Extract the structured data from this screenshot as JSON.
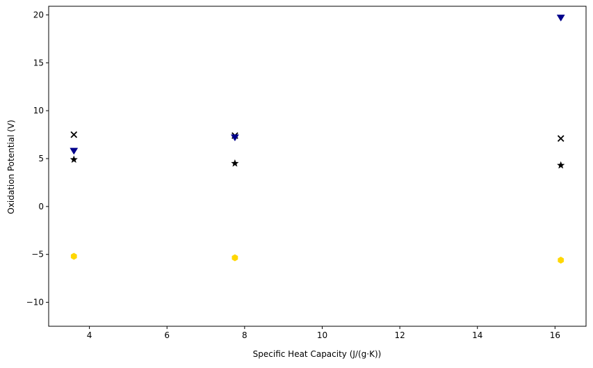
{
  "chart_data": {
    "type": "scatter",
    "title": "",
    "xlabel": "Specific Heat Capacity (J/(g·K))",
    "ylabel": "Oxidation Potential (V)",
    "xlim": [
      2.95,
      16.8
    ],
    "ylim": [
      -12.5,
      20.9
    ],
    "x_ticks": [
      4,
      6,
      8,
      10,
      12,
      14,
      16
    ],
    "y_ticks": [
      -10,
      -5,
      0,
      5,
      10,
      15,
      20
    ],
    "x_tick_labels": [
      "4",
      "6",
      "8",
      "10",
      "12",
      "14",
      "16"
    ],
    "y_tick_labels": [
      "−10",
      "−5",
      "0",
      "5",
      "10",
      "15",
      "20"
    ],
    "grid": false,
    "legend": "none",
    "series": [
      {
        "marker": "x",
        "color": "#000000",
        "points": [
          {
            "x": 3.6,
            "y": 7.5
          },
          {
            "x": 7.75,
            "y": 7.4
          },
          {
            "x": 16.15,
            "y": 7.1
          }
        ]
      },
      {
        "marker": "triangle-down",
        "color": "#00008B",
        "points": [
          {
            "x": 3.6,
            "y": 5.8
          },
          {
            "x": 7.75,
            "y": 7.2
          },
          {
            "x": 16.15,
            "y": 19.7
          }
        ]
      },
      {
        "marker": "star",
        "color": "#000000",
        "points": [
          {
            "x": 3.6,
            "y": 4.9
          },
          {
            "x": 7.75,
            "y": 4.5
          },
          {
            "x": 16.15,
            "y": 4.3
          }
        ]
      },
      {
        "marker": "hexagon",
        "color": "#FFD700",
        "points": [
          {
            "x": 3.6,
            "y": -5.2
          },
          {
            "x": 7.75,
            "y": -5.35
          },
          {
            "x": 16.15,
            "y": -5.6
          }
        ]
      }
    ]
  }
}
